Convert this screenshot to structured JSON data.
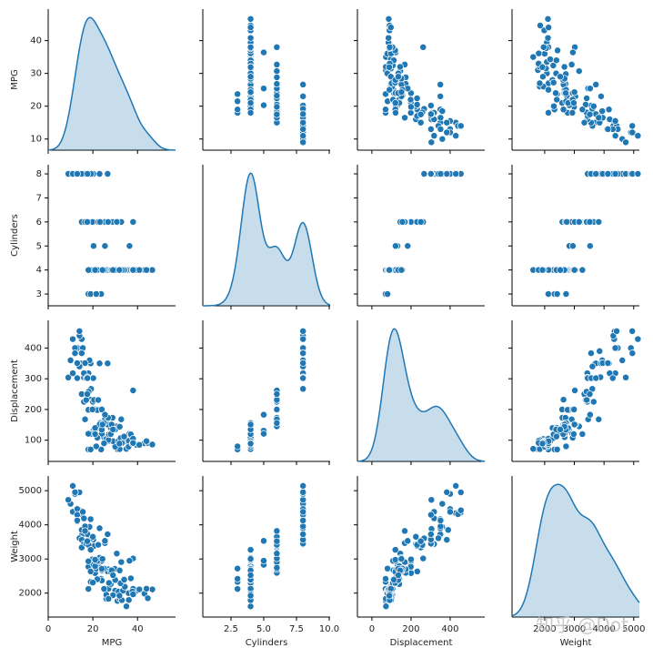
{
  "chart_data": {
    "type": "pairplot",
    "diag_kind": "kde",
    "color": "#1f77b4",
    "watermark": "知乎 @Dot",
    "variables": [
      {
        "name": "MPG",
        "xlim": [
          0,
          57
        ],
        "ylim": [
          6.6,
          49.6
        ],
        "xticks": [
          0,
          20,
          40
        ],
        "yticks": [
          10,
          20,
          30,
          40
        ]
      },
      {
        "name": "Cylinders",
        "xlim": [
          0.35,
          10.07
        ],
        "ylim": [
          2.51,
          8.38
        ],
        "xticks": [
          2.5,
          {
            "value": 5,
            "label": "5.0"
          },
          7.5,
          {
            "value": 10,
            "label": "10.0"
          }
        ],
        "yticks": [
          3,
          4,
          5,
          6,
          7,
          8
        ]
      },
      {
        "name": "Displacement",
        "xlim": [
          -74,
          577
        ],
        "ylim": [
          31,
          490
        ],
        "xticks": [
          0,
          200,
          400
        ],
        "yticks": [
          100,
          200,
          300,
          400
        ]
      },
      {
        "name": "Weight",
        "xlim": [
          900,
          5190
        ],
        "ylim": [
          1300,
          5430
        ],
        "xticks": [
          2000,
          3000,
          4000,
          5000
        ],
        "yticks": [
          2000,
          3000,
          4000,
          5000
        ]
      }
    ],
    "rows": [
      [
        18,
        8,
        307,
        3504
      ],
      [
        15,
        8,
        350,
        3693
      ],
      [
        18,
        8,
        318,
        3436
      ],
      [
        16,
        8,
        304,
        3433
      ],
      [
        17,
        8,
        302,
        3449
      ],
      [
        15,
        8,
        429,
        4341
      ],
      [
        14,
        8,
        454,
        4354
      ],
      [
        14,
        8,
        440,
        4312
      ],
      [
        14,
        8,
        455,
        4425
      ],
      [
        15,
        8,
        390,
        3850
      ],
      [
        10,
        8,
        360,
        4615
      ],
      [
        9,
        8,
        304,
        4732
      ],
      [
        11,
        8,
        318,
        4382
      ],
      [
        13,
        8,
        400,
        4464
      ],
      [
        12,
        8,
        400,
        4906
      ],
      [
        13,
        8,
        350,
        4100
      ],
      [
        14,
        8,
        455,
        4951
      ],
      [
        16,
        8,
        318,
        4190
      ],
      [
        17.5,
        8,
        305,
        3880
      ],
      [
        19,
        8,
        350,
        4165
      ],
      [
        18.5,
        8,
        360,
        3940
      ],
      [
        20.2,
        8,
        302,
        3570
      ],
      [
        26.6,
        8,
        350,
        3725
      ],
      [
        23,
        8,
        350,
        3900
      ],
      [
        13,
        8,
        302,
        4294
      ],
      [
        15.5,
        8,
        400,
        4380
      ],
      [
        16.5,
        8,
        351,
        3955
      ],
      [
        19.2,
        8,
        267,
        3605
      ],
      [
        12,
        8,
        383,
        4955
      ],
      [
        11,
        8,
        429,
        5140
      ],
      [
        14,
        8,
        340,
        3609
      ],
      [
        15,
        8,
        383,
        3563
      ],
      [
        13,
        8,
        351,
        4129
      ],
      [
        17.6,
        8,
        302,
        3725
      ],
      [
        21,
        6,
        200,
        2587
      ],
      [
        22,
        6,
        198,
        2833
      ],
      [
        18,
        6,
        199,
        2774
      ],
      [
        16,
        6,
        225,
        3439
      ],
      [
        19,
        6,
        232,
        2634
      ],
      [
        15,
        6,
        250,
        3336
      ],
      [
        20,
        6,
        225,
        3651
      ],
      [
        17,
        6,
        231,
        3445
      ],
      [
        24,
        6,
        200,
        2945
      ],
      [
        20.5,
        6,
        231,
        3380
      ],
      [
        18.1,
        6,
        258,
        3410
      ],
      [
        19.8,
        6,
        200,
        2990
      ],
      [
        25.4,
        6,
        168,
        3465
      ],
      [
        28.8,
        6,
        173,
        2595
      ],
      [
        32.7,
        6,
        168,
        2910
      ],
      [
        38,
        6,
        262,
        3015
      ],
      [
        22.4,
        6,
        231,
        3415
      ],
      [
        30.7,
        6,
        145,
        3160
      ],
      [
        26.8,
        6,
        173,
        2700
      ],
      [
        16.5,
        6,
        168,
        3820
      ],
      [
        17.5,
        6,
        250,
        3520
      ],
      [
        23.2,
        6,
        156,
        2745
      ],
      [
        20.3,
        5,
        131,
        2830
      ],
      [
        25.4,
        5,
        183,
        3530
      ],
      [
        36.4,
        5,
        121,
        2950
      ],
      [
        18,
        3,
        70,
        2124
      ],
      [
        19,
        3,
        70,
        2330
      ],
      [
        23.7,
        3,
        70,
        2420
      ],
      [
        21.5,
        3,
        80,
        2720
      ],
      [
        24,
        4,
        113,
        2372
      ],
      [
        27,
        4,
        97,
        2130
      ],
      [
        26,
        4,
        97,
        1835
      ],
      [
        25,
        4,
        110,
        2672
      ],
      [
        26,
        4,
        104,
        1955
      ],
      [
        28,
        4,
        140,
        2264
      ],
      [
        31,
        4,
        71,
        1773
      ],
      [
        35,
        4,
        72,
        1613
      ],
      [
        32,
        4,
        71,
        1836
      ],
      [
        30,
        4,
        79,
        2074
      ],
      [
        29,
        4,
        97,
        1940
      ],
      [
        24,
        4,
        121,
        2671
      ],
      [
        22,
        4,
        140,
        2408
      ],
      [
        20,
        4,
        122,
        2310
      ],
      [
        27,
        4,
        101,
        1834
      ],
      [
        36,
        4,
        79,
        2000
      ],
      [
        31.5,
        4,
        98,
        2045
      ],
      [
        29.8,
        4,
        134,
        2711
      ],
      [
        33.5,
        4,
        98,
        2075
      ],
      [
        34.3,
        4,
        97,
        2188
      ],
      [
        43.1,
        4,
        90,
        1985
      ],
      [
        36.1,
        4,
        98,
        1800
      ],
      [
        39.4,
        4,
        85,
        2070
      ],
      [
        44.6,
        4,
        91,
        1850
      ],
      [
        46.6,
        4,
        86,
        2110
      ],
      [
        40.8,
        4,
        85,
        2110
      ],
      [
        37,
        4,
        119,
        2434
      ],
      [
        38,
        4,
        105,
        2125
      ],
      [
        32.4,
        4,
        107,
        2290
      ],
      [
        27.2,
        4,
        119,
        2300
      ],
      [
        26.6,
        4,
        151,
        2635
      ],
      [
        23,
        4,
        151,
        3035
      ],
      [
        21,
        4,
        140,
        2790
      ],
      [
        25,
        4,
        156,
        2720
      ],
      [
        30,
        4,
        135,
        2385
      ],
      [
        34,
        4,
        112,
        2395
      ],
      [
        37.7,
        4,
        89,
        2050
      ],
      [
        28,
        4,
        120,
        2625
      ],
      [
        24,
        4,
        134,
        2711
      ],
      [
        19,
        4,
        120,
        3270
      ],
      [
        18,
        4,
        121,
        2933
      ],
      [
        22,
        4,
        108,
        2945
      ],
      [
        33,
        4,
        91,
        1795
      ],
      [
        25,
        4,
        90,
        2125
      ],
      [
        21,
        4,
        120,
        2979
      ],
      [
        28.4,
        4,
        151,
        2670
      ],
      [
        44,
        4,
        97,
        2130
      ],
      [
        32,
        4,
        144,
        2665
      ],
      [
        38,
        4,
        91,
        1965
      ],
      [
        29,
        4,
        135,
        2525
      ],
      [
        24.3,
        4,
        151,
        3003
      ],
      [
        31.9,
        4,
        89,
        1925
      ]
    ]
  }
}
